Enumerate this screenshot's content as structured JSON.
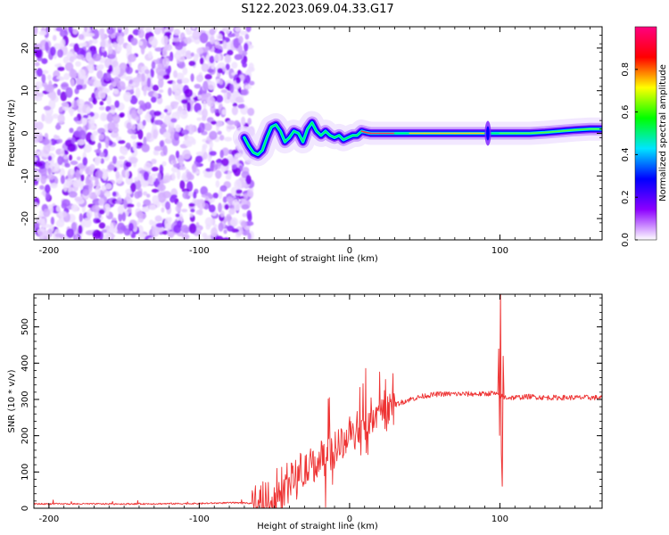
{
  "title": "S122.2023.069.04.33.G17",
  "chart_data": [
    {
      "type": "heatmap",
      "xlabel": "Height of straight line (km)",
      "ylabel": "Frequency (Hz)",
      "xlim": [
        -210,
        168
      ],
      "ylim": [
        -25,
        25
      ],
      "xticks": [
        -200,
        -100,
        0,
        100
      ],
      "yticks": [
        -20,
        -10,
        0,
        10,
        20
      ],
      "grid": false,
      "noise_region_x": [
        -210,
        -65
      ],
      "track": {
        "x": [
          -70,
          -67,
          -64,
          -61,
          -58,
          -55,
          -52,
          -49,
          -46,
          -43,
          -40,
          -37,
          -34,
          -31,
          -28,
          -25,
          -22,
          -19,
          -16,
          -13,
          -10,
          -7,
          -4,
          -1,
          2,
          5,
          8,
          11,
          14,
          20,
          30,
          40,
          50,
          60,
          70,
          80,
          90,
          100,
          110,
          120,
          130,
          140,
          150,
          160,
          168
        ],
        "y": [
          -1,
          -3,
          -4.5,
          -5,
          -4,
          -1,
          1.5,
          2,
          0.5,
          -2,
          -1,
          0.5,
          0,
          -2,
          1,
          2.5,
          0.5,
          -0.5,
          0.5,
          -0.5,
          -1,
          -0.5,
          -1.5,
          -1,
          -0.5,
          -0.5,
          0.5,
          0.2,
          0,
          0,
          0,
          0,
          0,
          0,
          0,
          0,
          0,
          0,
          0,
          0,
          0.2,
          0.5,
          0.8,
          1,
          1
        ]
      },
      "colorbar": {
        "label": "Normalized spectral amplitude",
        "ticks": [
          "0.0",
          "0.2",
          "0.4",
          "0.6",
          "0.8"
        ],
        "range": [
          0,
          1
        ],
        "colors": [
          "#ffffff",
          "#8c00ff",
          "#0000ff",
          "#00e5ff",
          "#00ff00",
          "#ffff00",
          "#ff0000",
          "#ff0080"
        ]
      }
    },
    {
      "type": "line",
      "xlabel": "Height of straight line (km)",
      "ylabel": "SNR (10 * v/v)",
      "xlim": [
        -210,
        168
      ],
      "ylim": [
        0,
        590
      ],
      "xticks": [
        -200,
        -100,
        0,
        100
      ],
      "yticks": [
        0,
        100,
        200,
        300,
        400,
        500
      ],
      "grid": false,
      "color": "#ee3333",
      "envelope": {
        "x": [
          -210,
          -150,
          -100,
          -80,
          -70,
          -65,
          -60,
          -55,
          -50,
          -45,
          -40,
          -35,
          -30,
          -25,
          -20,
          -15,
          -10,
          -5,
          0,
          5,
          10,
          20,
          30,
          40,
          50,
          60,
          70,
          80,
          90,
          95,
          100,
          105,
          110,
          120,
          130,
          140,
          150,
          160,
          168
        ],
        "y": [
          12,
          12,
          13,
          15,
          14,
          14,
          15,
          18,
          25,
          40,
          70,
          95,
          100,
          110,
          135,
          150,
          165,
          180,
          200,
          220,
          235,
          260,
          285,
          300,
          310,
          315,
          315,
          315,
          315,
          318,
          310,
          305,
          305,
          308,
          305,
          305,
          305,
          305,
          305
        ]
      },
      "spike": {
        "x": 101,
        "peak": 590,
        "trough": 60
      }
    }
  ]
}
